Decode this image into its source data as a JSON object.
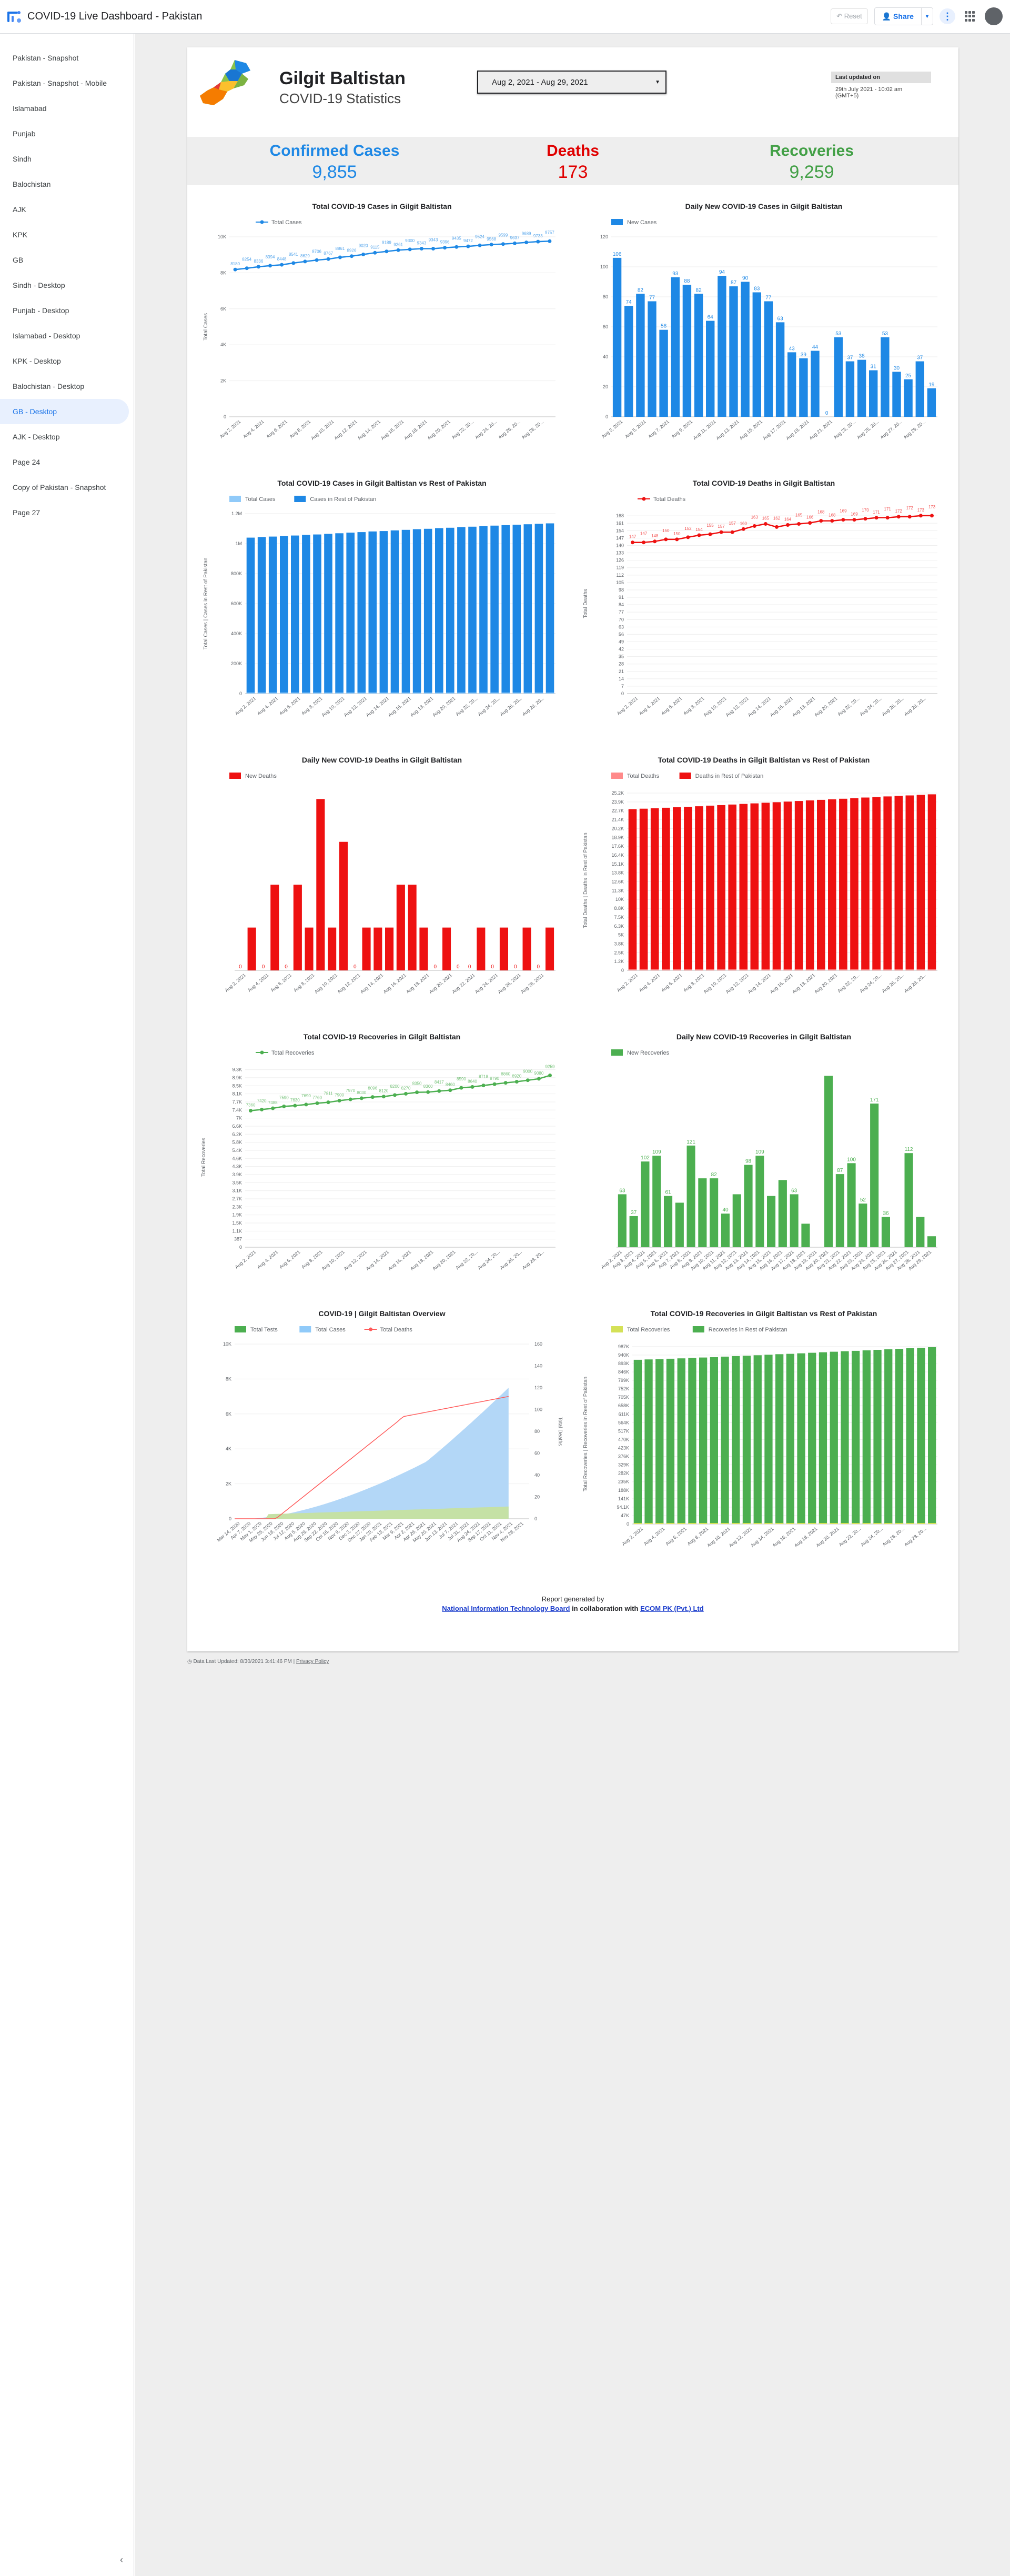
{
  "app": {
    "title": "COVID-19 Live Dashboard - Pakistan"
  },
  "toolbar": {
    "reset": "Reset",
    "share": "Share",
    "share_dd": "▾",
    "kebab": "⋮"
  },
  "sidebar": {
    "items": [
      {
        "label": "Pakistan - Snapshot"
      },
      {
        "label": "Pakistan - Snapshot - Mobile"
      },
      {
        "label": "Islamabad"
      },
      {
        "label": "Punjab"
      },
      {
        "label": "Sindh"
      },
      {
        "label": "Balochistan"
      },
      {
        "label": "AJK"
      },
      {
        "label": "KPK"
      },
      {
        "label": "GB"
      },
      {
        "label": "Sindh - Desktop"
      },
      {
        "label": "Punjab - Desktop"
      },
      {
        "label": "Islamabad - Desktop"
      },
      {
        "label": "KPK - Desktop"
      },
      {
        "label": "Balochistan - Desktop"
      },
      {
        "label": "GB - Desktop",
        "active": true
      },
      {
        "label": "AJK - Desktop"
      },
      {
        "label": "Page 24"
      },
      {
        "label": "Copy of Pakistan - Snapshot"
      },
      {
        "label": "Page 27"
      }
    ],
    "collapse": "‹"
  },
  "header": {
    "region": "Gilgit Baltistan",
    "subtitle": "COVID-19 Statistics",
    "date_range": "Aug 2, 2021 - Aug 29, 2021",
    "updated_label": "Last updated on",
    "updated_value": "29th July 2021 - 10:02 am (GMT+5)"
  },
  "kpis": [
    {
      "label": "Confirmed Cases",
      "value": "9,855",
      "color": "#1e88e5"
    },
    {
      "label": "Deaths",
      "value": "173",
      "color": "#e00000"
    },
    {
      "label": "Recoveries",
      "value": "9,259",
      "color": "#43a047"
    }
  ],
  "colors": {
    "blue": "#1e88e5",
    "red": "#ee1111",
    "green": "#4caf50",
    "light_blue": "#90caf9",
    "pink": "#ff8a8a",
    "lime": "#d4e157"
  },
  "footer": {
    "line1": "Report generated by",
    "org1": "National Information Technology Board",
    "mid": " in collaboration with ",
    "org2": "ECOM PK (Pvt.) Ltd",
    "ds": "Data Last Updated: 8/30/2021 3:41:46 PM",
    "privacy": "Privacy Policy"
  },
  "chart_data": [
    {
      "id": "c1",
      "type": "line",
      "title": "Total COVID-19 Cases in Gilgit Baltistan",
      "legend": [
        "Total Cases"
      ],
      "ylabel": "Total Cases",
      "yticks": [
        "0",
        "2K",
        "4K",
        "6K",
        "8K",
        "10K"
      ],
      "ylim": [
        0,
        10000
      ],
      "x": [
        "Aug 2, 2021",
        "Aug 3, 2021",
        "Aug 4, 2021",
        "Aug 5, 2021",
        "Aug 6, 2021",
        "Aug 7, 2021",
        "Aug 8, 2021",
        "Aug 9, 2021",
        "Aug 10, 2021",
        "Aug 11, 2021",
        "Aug 12, 2021",
        "Aug 13, 2021",
        "Aug 14, 2021",
        "Aug 15, 2021",
        "Aug 16, 2021",
        "Aug 17, 2021",
        "Aug 18, 2021",
        "Aug 19, 2021",
        "Aug 20, 2021",
        "Aug 21, 2021",
        "Aug 22, 2021",
        "Aug 23, 2021",
        "Aug 24, 2021",
        "Aug 25, 2021",
        "Aug 26, 2021",
        "Aug 27, 2021",
        "Aug 28, 2021",
        "Aug 29, 2021"
      ],
      "xticks": [
        "Aug 2, 2021",
        "Aug 4, 2021",
        "Aug 6, 2021",
        "Aug 8, 2021",
        "Aug 10, 2021",
        "Aug 12, 2021",
        "Aug 14, 2021",
        "Aug 16, 2021",
        "Aug 18, 2021",
        "Aug 20, 2021",
        "Aug 22, 20...",
        "Aug 24, 20...",
        "Aug 26, 20...",
        "Aug 28, 20..."
      ],
      "values": [
        8180,
        8254,
        8336,
        8394,
        8448,
        8541,
        8629,
        8706,
        8767,
        8861,
        8926,
        9020,
        9115,
        9189,
        9261,
        9300,
        9343,
        9343,
        9396,
        9435,
        9472,
        9524,
        9568,
        9599,
        9637,
        9689,
        9733,
        9757
      ]
    },
    {
      "id": "c2",
      "type": "bar",
      "title": "Daily New COVID-19 Cases in Gilgit Baltistan",
      "legend": [
        "New Cases"
      ],
      "ylabel": "",
      "yticks": [
        "0",
        "20",
        "40",
        "60",
        "80",
        "100",
        "120"
      ],
      "ylim": [
        0,
        120
      ],
      "x": [
        "Aug 2, 2021",
        "Aug 3, 2021",
        "Aug 4, 2021",
        "Aug 5, 2021",
        "Aug 6, 2021",
        "Aug 7, 2021",
        "Aug 8, 2021",
        "Aug 9, 2021",
        "Aug 10, 2021",
        "Aug 11, 2021",
        "Aug 12, 2021",
        "Aug 13, 2021",
        "Aug 14, 2021",
        "Aug 15, 2021",
        "Aug 16, 2021",
        "Aug 17, 2021",
        "Aug 18, 2021",
        "Aug 19, 2021",
        "Aug 20, 2021",
        "Aug 21, 2021",
        "Aug 22, 2021",
        "Aug 23, 2021",
        "Aug 24, 2021",
        "Aug 25, 2021",
        "Aug 26, 2021",
        "Aug 27, 2021",
        "Aug 28, 2021",
        "Aug 29, 2021"
      ],
      "xticks": [
        "Aug 3, 2021",
        "Aug 5, 2021",
        "Aug 7, 2021",
        "Aug 9, 2021",
        "Aug 11, 2021",
        "Aug 13, 2021",
        "Aug 15, 2021",
        "Aug 17, 2021",
        "Aug 19, 2021",
        "Aug 21, 2021",
        "Aug 23, 20...",
        "Aug 25, 20...",
        "Aug 27, 20...",
        "Aug 29, 20..."
      ],
      "values": [
        106,
        74,
        82,
        77,
        58,
        93,
        88,
        82,
        64,
        94,
        87,
        90,
        83,
        77,
        63,
        43,
        39,
        44,
        0,
        53,
        37,
        38,
        31,
        53,
        30,
        25,
        37,
        19
      ]
    },
    {
      "id": "c3",
      "type": "bar",
      "title": "Total COVID-19 Cases in Gilgit Baltistan vs Rest of Pakistan",
      "legend": [
        "Total Cases",
        "Cases in Rest of Pakistan"
      ],
      "ylabel": "Total Cases | Cases in Rest of Pakistan",
      "yticks": [
        "0",
        "200K",
        "400K",
        "600K",
        "800K",
        "1M",
        "1.2M"
      ],
      "ylim": [
        0,
        1200000
      ],
      "xticks": [
        "Aug 2, 2021",
        "Aug 4, 2021",
        "Aug 6, 2021",
        "Aug 8, 2021",
        "Aug 10, 2021",
        "Aug 12, 2021",
        "Aug 14, 2021",
        "Aug 16, 2021",
        "Aug 18, 2021",
        "Aug 20, 2021",
        "Aug 22, 20...",
        "Aug 24, 20...",
        "Aug 26, 20...",
        "Aug 28, 20..."
      ],
      "values": [
        1040000,
        1044000,
        1047000,
        1050000,
        1054000,
        1058000,
        1061000,
        1065000,
        1069000,
        1073000,
        1077000,
        1081000,
        1084000,
        1088000,
        1092000,
        1096000,
        1099000,
        1103000,
        1106000,
        1110000,
        1113000,
        1116000,
        1120000,
        1123000,
        1126000,
        1129000,
        1132000,
        1135000
      ]
    },
    {
      "id": "c4",
      "type": "line",
      "title": "Total COVID-19 Deaths in Gilgit Baltistan",
      "legend": [
        "Total Deaths"
      ],
      "ylabel": "Total Deaths",
      "yticks": [
        "0",
        "7",
        "14",
        "21",
        "28",
        "35",
        "42",
        "49",
        "56",
        "63",
        "70",
        "77",
        "84",
        "91",
        "98",
        "105",
        "112",
        "119",
        "126",
        "133",
        "140",
        "147",
        "154",
        "161",
        "168"
      ],
      "ylim": [
        0,
        175
      ],
      "xticks": [
        "Aug 2, 2021",
        "Aug 4, 2021",
        "Aug 6, 2021",
        "Aug 8, 2021",
        "Aug 10, 2021",
        "Aug 12, 2021",
        "Aug 14, 2021",
        "Aug 16, 2021",
        "Aug 18, 2021",
        "Aug 20, 2021",
        "Aug 22, 20...",
        "Aug 24, 20...",
        "Aug 26, 20...",
        "Aug 28, 20..."
      ],
      "values": [
        147,
        147,
        148,
        150,
        150,
        152,
        154,
        155,
        157,
        157,
        160,
        163,
        165,
        162,
        164,
        165,
        166,
        168,
        168,
        169,
        169,
        170,
        171,
        171,
        172,
        172,
        173,
        173
      ]
    },
    {
      "id": "c5",
      "type": "bar",
      "title": "Daily New COVID-19 Deaths in Gilgit Baltistan",
      "legend": [
        "New Deaths"
      ],
      "ylabel": "",
      "xticks": [
        "Aug 2, 2021",
        "Aug 4, 2021",
        "Aug 6, 2021",
        "Aug 8, 2021",
        "Aug 10, 2021",
        "Aug 12, 2021",
        "Aug 14, 2021",
        "Aug 16, 2021",
        "Aug 18, 2021",
        "Aug 20, 2021",
        "Aug 22, 2021",
        "Aug 24, 2021",
        "Aug 26, 2021",
        "Aug 28, 2021"
      ],
      "values": [
        0,
        1,
        0,
        2,
        0,
        2,
        1,
        4,
        1,
        3,
        0,
        1,
        1,
        1,
        2,
        2,
        1,
        0,
        1,
        0,
        0,
        1,
        0,
        1,
        0,
        1,
        0,
        1
      ]
    },
    {
      "id": "c6",
      "type": "bar",
      "title": "Total COVID-19 Deaths in Gilgit Baltistan vs Rest of Pakistan",
      "legend": [
        "Total Deaths",
        "Deaths in Rest of Pakistan"
      ],
      "ylabel": "Total Deaths | Deaths in Rest of Pakistan",
      "yticks": [
        "0",
        "1.2K",
        "2.5K",
        "3.8K",
        "5K",
        "6.3K",
        "7.5K",
        "8.8K",
        "10K",
        "11.3K",
        "12.6K",
        "13.8K",
        "15.1K",
        "16.4K",
        "17.6K",
        "18.9K",
        "20.2K",
        "21.4K",
        "22.7K",
        "23.9K",
        "25.2K"
      ],
      "ylim": [
        0,
        26000
      ],
      "xticks": [
        "Aug 2, 2021",
        "Aug 4, 2021",
        "Aug 6, 2021",
        "Aug 8, 2021",
        "Aug 10, 2021",
        "Aug 12, 2021",
        "Aug 14, 2021",
        "Aug 16, 2021",
        "Aug 18, 2021",
        "Aug 20, 2021",
        "Aug 22, 20...",
        "Aug 24, 20...",
        "Aug 26, 20...",
        "Aug 28, 20..."
      ],
      "values": [
        23300,
        23360,
        23430,
        23500,
        23570,
        23640,
        23710,
        23800,
        23880,
        23960,
        24050,
        24130,
        24220,
        24300,
        24390,
        24470,
        24560,
        24640,
        24720,
        24800,
        24890,
        24970,
        25050,
        25130,
        25210,
        25280,
        25360,
        25440
      ]
    },
    {
      "id": "c7",
      "type": "line",
      "title": "Total COVID-19 Recoveries in Gilgit Baltistan",
      "legend": [
        "Total Recoveries"
      ],
      "ylabel": "Total Recoveries",
      "yticks": [
        "0",
        "387",
        "1.1K",
        "1.5K",
        "1.9K",
        "2.3K",
        "2.7K",
        "3.1K",
        "3.5K",
        "3.9K",
        "4.3K",
        "4.6K",
        "5.4K",
        "5.8K",
        "6.2K",
        "6.6K",
        "7K",
        "7.4K",
        "7.7K",
        "8.1K",
        "8.5K",
        "8.9K",
        "9.3K"
      ],
      "ylim": [
        0,
        9700
      ],
      "xticks": [
        "Aug 2, 2021",
        "Aug 4, 2021",
        "Aug 6, 2021",
        "Aug 8, 2021",
        "Aug 10, 2021",
        "Aug 12, 2021",
        "Aug 14, 2021",
        "Aug 16, 2021",
        "Aug 18, 2021",
        "Aug 20, 2021",
        "Aug 22, 20...",
        "Aug 24, 20...",
        "Aug 26, 20...",
        "Aug 28, 20..."
      ],
      "values": [
        7360,
        7420,
        7488,
        7590,
        7630,
        7690,
        7760,
        7811,
        7900,
        7970,
        8030,
        8096,
        8120,
        8200,
        8270,
        8350,
        8360,
        8417,
        8460,
        8590,
        8640,
        8718,
        8790,
        8860,
        8920,
        9000,
        9080,
        9259
      ]
    },
    {
      "id": "c8",
      "type": "bar",
      "title": "Daily New COVID-19 Recoveries in Gilgit Baltistan",
      "legend": [
        "New Recoveries"
      ],
      "ylabel": "",
      "xticks": [
        "Aug 2, 2021",
        "Aug 3, 2021",
        "Aug 4, 2021",
        "Aug 5, 2021",
        "Aug 6, 2021",
        "Aug 7, 2021",
        "Aug 8, 2021",
        "Aug 9, 2021",
        "Aug 10, 2021",
        "Aug 11, 2021",
        "Aug 12, 2021",
        "Aug 13, 2021",
        "Aug 14, 2021",
        "Aug 15, 2021",
        "Aug 16, 2021",
        "Aug 17, 2021",
        "Aug 18, 2021",
        "Aug 19, 2021",
        "Aug 20, 2021",
        "Aug 21, 2021",
        "Aug 22, 2021",
        "Aug 23, 2021",
        "Aug 24, 2021",
        "Aug 25, 2021",
        "Aug 26, 2021",
        "Aug 27, 2021",
        "Aug 28, 2021",
        "Aug 29, 2021"
      ],
      "values": [
        63,
        37,
        102,
        109,
        61,
        53,
        121,
        82,
        82,
        40,
        63,
        98,
        109,
        61,
        80,
        63,
        28,
        0,
        204,
        87,
        100,
        52,
        171,
        36,
        0,
        112,
        36,
        13
      ],
      "labels": [
        "63",
        "37",
        "102",
        "109",
        "61",
        "",
        "121",
        "",
        "82",
        "40",
        "",
        "98",
        "109",
        "",
        "",
        "63",
        "",
        "",
        "",
        "87",
        "100",
        "52",
        "171",
        "36",
        "",
        "112",
        "",
        ""
      ]
    },
    {
      "id": "c9",
      "type": "area",
      "title": "COVID-19   |   Gilgit Baltistan Overview",
      "legend": [
        "Total Tests",
        "Total Cases",
        "Total Deaths"
      ],
      "ylabel": "",
      "y2label": "Total Deaths",
      "yticks": [
        "0",
        "2K",
        "4K",
        "6K",
        "8K",
        "10K"
      ],
      "y2ticks": [
        "0",
        "20",
        "40",
        "60",
        "80",
        "100",
        "120",
        "140",
        "160"
      ],
      "xticks": [
        "Mar 14, 2020",
        "Apr 7, 2020",
        "May 1, 2020",
        "May 25, 2020",
        "Jun 18, 2020",
        "Jul 12, 2020",
        "Aug 5, 2020",
        "Aug 29, 2020",
        "Sep 22, 2020",
        "Oct 16, 2020",
        "Nov 9, 2020",
        "Dec 3, 2020",
        "Dec 27, 2020",
        "Jan 20, 2021",
        "Feb 13, 2021",
        "Mar 9, 2021",
        "Apr 2, 2021",
        "Apr 26, 2021",
        "May 20, 2021",
        "Jun 13, 2021",
        "Jul 7, 2021",
        "Jul 31, 2021",
        "Aug 24, 2021",
        "Sep 17, 2021",
        "Oct 11, 2021",
        "Nov 4, 2021",
        "Nov 28, 2021"
      ]
    },
    {
      "id": "c10",
      "type": "bar",
      "title": "Total COVID-19 Recoveries in Gilgit Baltistan vs Rest of Pakistan",
      "legend": [
        "Total Recoveries",
        "Recoveries in Rest of Pakistan"
      ],
      "ylabel": "Total Recoveries | Recoveries in Rest of Pakistan",
      "yticks": [
        "0",
        "47K",
        "94.1K",
        "141K",
        "188K",
        "235K",
        "282K",
        "329K",
        "376K",
        "423K",
        "470K",
        "517K",
        "564K",
        "611K",
        "658K",
        "705K",
        "752K",
        "799K",
        "846K",
        "893K",
        "940K",
        "987K"
      ],
      "ylim": [
        0,
        1030000
      ],
      "xticks": [
        "Aug 2, 2021",
        "Aug 4, 2021",
        "Aug 6, 2021",
        "Aug 8, 2021",
        "Aug 10, 2021",
        "Aug 12, 2021",
        "Aug 14, 2021",
        "Aug 16, 2021",
        "Aug 18, 2021",
        "Aug 20, 2021",
        "Aug 22, 20...",
        "Aug 24, 20...",
        "Aug 26, 20...",
        "Aug 28, 20..."
      ],
      "values": [
        940000,
        942000,
        944000,
        946000,
        948000,
        951000,
        953000,
        955000,
        958000,
        961000,
        963000,
        966000,
        969000,
        972000,
        974000,
        977000,
        980000,
        983000,
        986000,
        989000,
        991000,
        994000,
        997000,
        1000000,
        1003000,
        1006000,
        1009000,
        1012000
      ]
    }
  ]
}
